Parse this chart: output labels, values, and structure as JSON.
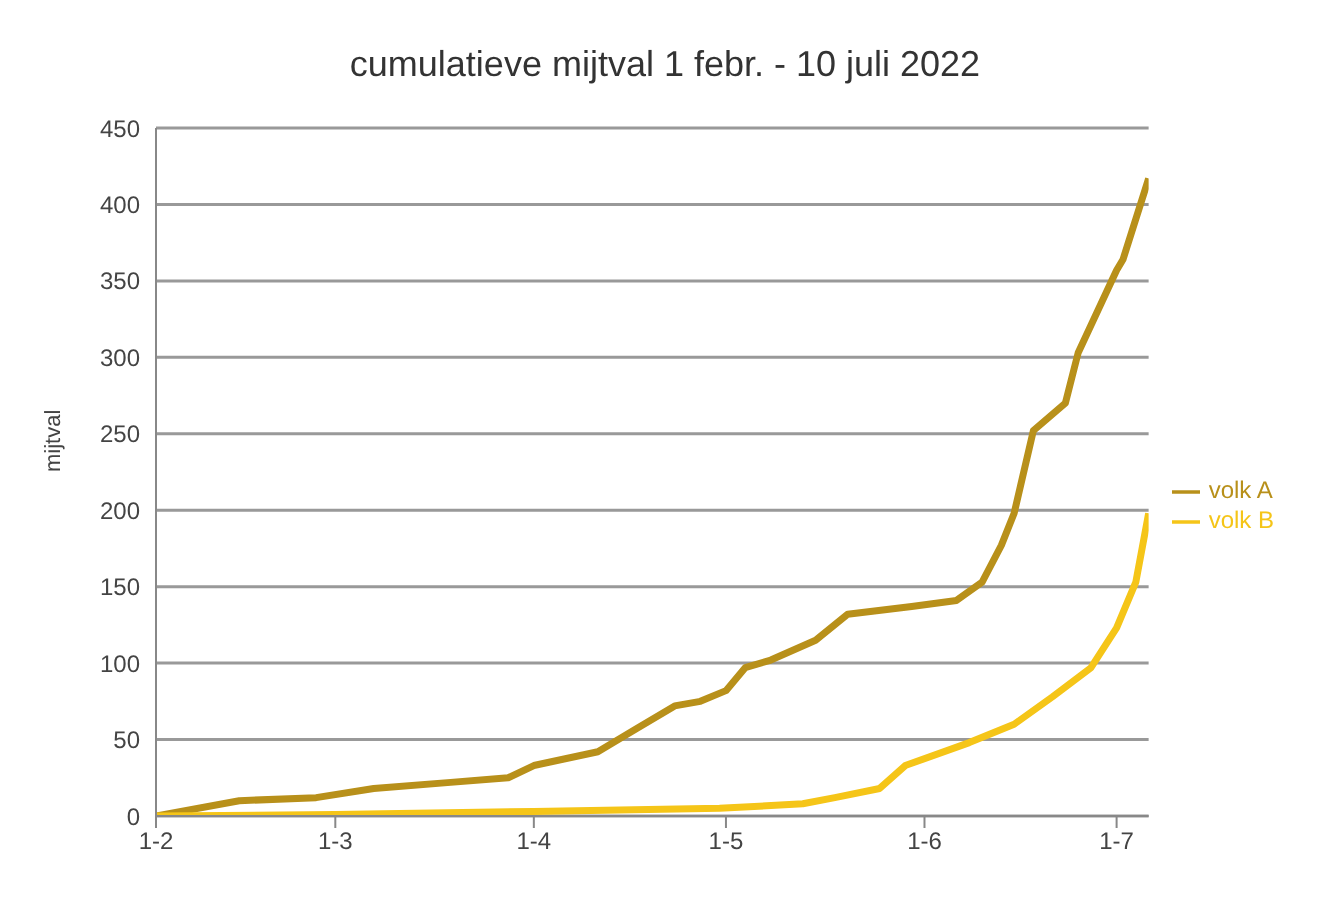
{
  "chart_data": {
    "type": "line",
    "title": "cumulatieve mijtval 1 febr. - 10 juli 2022",
    "ylabel": "mijtval",
    "xlim": [
      "--02-01",
      "--07-06"
    ],
    "xticks": [
      {
        "value": "--02-01",
        "label": "1-2"
      },
      {
        "value": "--03-01",
        "label": "1-3"
      },
      {
        "value": "--04-01",
        "label": "1-4"
      },
      {
        "value": "--05-01",
        "label": "1-5"
      },
      {
        "value": "--06-01",
        "label": "1-6"
      },
      {
        "value": "--07-01",
        "label": "1-7"
      }
    ],
    "ylim": [
      0,
      450
    ],
    "yticks": [
      0,
      50,
      100,
      150,
      200,
      250,
      300,
      350,
      400,
      450
    ],
    "grid": "y",
    "legend": "right",
    "marker": "none",
    "line_style": "solid",
    "series": [
      {
        "name": "volk A",
        "color": "#b8901a",
        "x": [
          "--02-01",
          "--02-14",
          "--02-26",
          "--03-07",
          "--03-19",
          "--03-28",
          "--04-01",
          "--04-11",
          "--04-17",
          "--04-23",
          "--04-27",
          "--05-01",
          "--05-04",
          "--05-08",
          "--05-15",
          "--05-20",
          "--05-30",
          "--06-06",
          "--06-10",
          "--06-13",
          "--06-15",
          "--06-18",
          "--06-23",
          "--06-25",
          "--07-01",
          "--07-02",
          "--07-06"
        ],
        "values": [
          0,
          10,
          12,
          18,
          22,
          25,
          33,
          42,
          57,
          72,
          75,
          82,
          97,
          102,
          115,
          132,
          137,
          141,
          153,
          177,
          198,
          252,
          270,
          303,
          357,
          364,
          417
        ]
      },
      {
        "name": "volk B",
        "color": "#f5c518",
        "x": [
          "--02-01",
          "--03-01",
          "--04-01",
          "--04-30",
          "--05-13",
          "--05-18",
          "--05-25",
          "--05-29",
          "--06-08",
          "--06-15",
          "--06-21",
          "--06-27",
          "--07-01",
          "--07-04",
          "--07-06"
        ],
        "values": [
          0,
          1,
          3,
          5,
          8,
          12,
          18,
          33,
          48,
          60,
          78,
          97,
          123,
          153,
          198
        ]
      }
    ]
  }
}
